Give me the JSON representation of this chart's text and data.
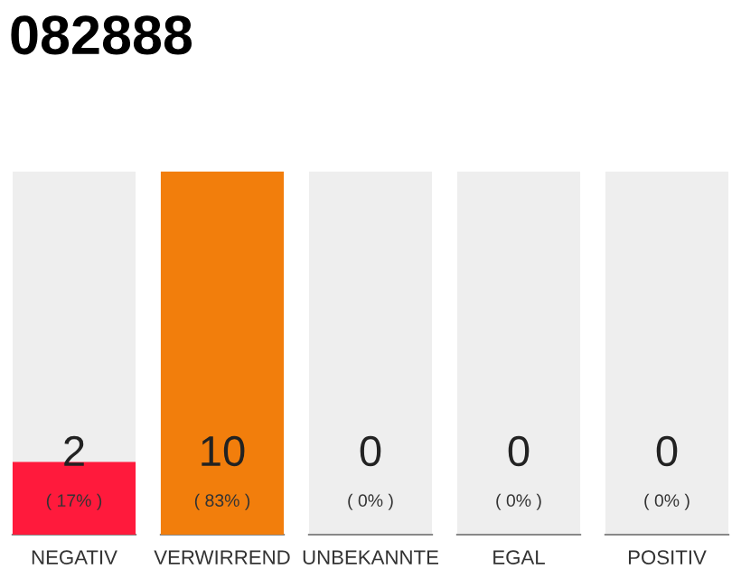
{
  "chart_data": {
    "type": "bar",
    "title": "082888",
    "categories": [
      "NEGATIV",
      "VERWIRREND",
      "UNBEKANNTE",
      "EGAL",
      "POSITIV"
    ],
    "values": [
      2,
      10,
      0,
      0,
      0
    ],
    "colors": [
      "#ff1a3c",
      "#f27e0c",
      "#ff1a3c",
      "#ff1a3c",
      "#ff1a3c"
    ],
    "tick_labels": "x",
    "bands": [
      {
        "axis": "y",
        "from": 0,
        "to": 10,
        "color": "#eeeeee"
      }
    ],
    "value_labels": [
      "2",
      "10",
      "0",
      "0",
      "0"
    ],
    "annotations": [
      "( 17% )",
      "( 83% )",
      "( 0% )",
      "( 0% )",
      "( 0% )"
    ]
  }
}
